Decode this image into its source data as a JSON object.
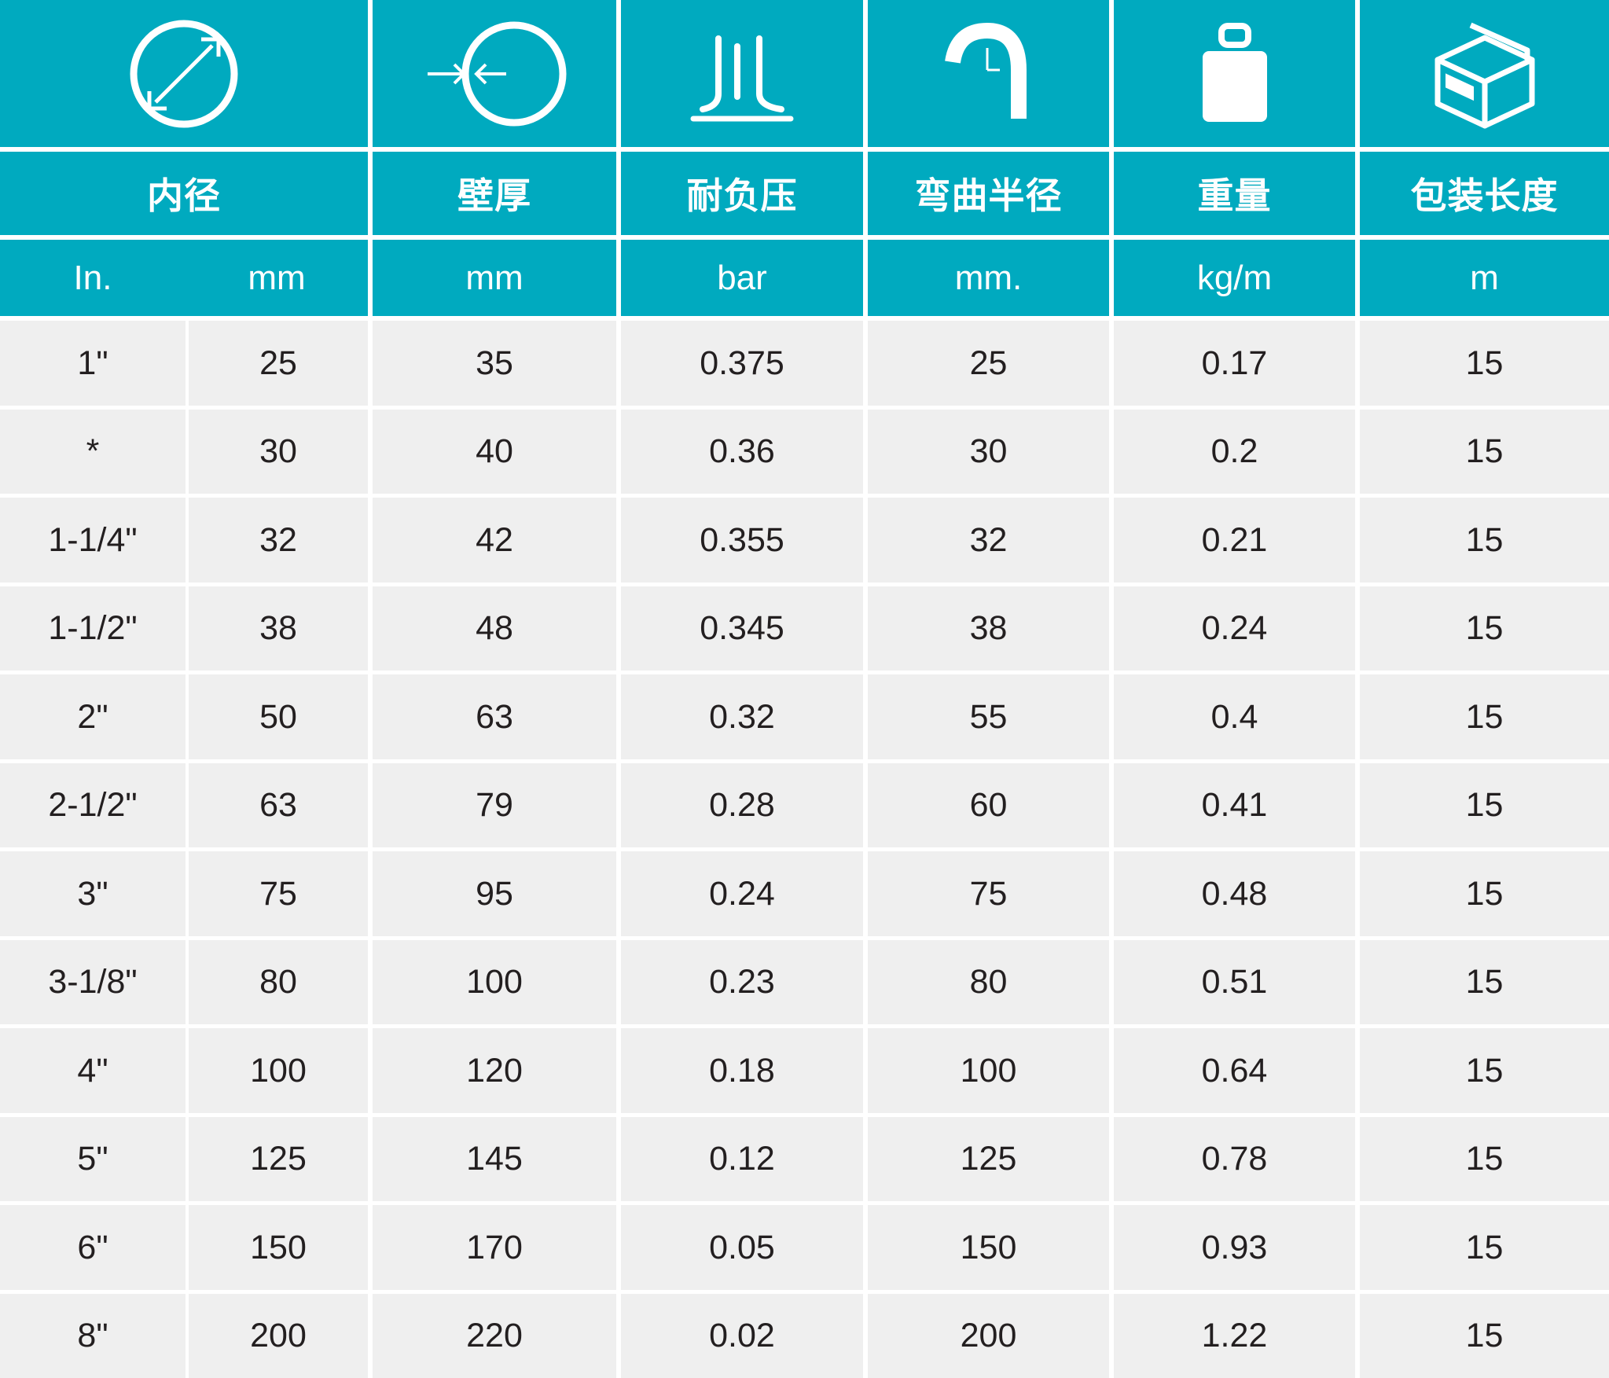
{
  "colors": {
    "header": "#00aabf",
    "row": "#efefef",
    "separator": "#ffffff",
    "text": "#231f20"
  },
  "columns": [
    {
      "icon": "diameter-icon",
      "title": "内径",
      "units": [
        "In.",
        "mm"
      ]
    },
    {
      "icon": "wall-thickness-icon",
      "title": "壁厚",
      "units": [
        "mm"
      ]
    },
    {
      "icon": "pressure-icon",
      "title": "耐负压",
      "units": [
        "bar"
      ]
    },
    {
      "icon": "bend-radius-icon",
      "title": "弯曲半径",
      "units": [
        "mm."
      ]
    },
    {
      "icon": "weight-icon",
      "title": "重量",
      "units": [
        "kg/m"
      ]
    },
    {
      "icon": "package-box-icon",
      "title": "包装长度",
      "units": [
        "m"
      ]
    }
  ],
  "rows": [
    [
      "1\"",
      "25",
      "35",
      "0.375",
      "25",
      "0.17",
      "15"
    ],
    [
      "*",
      "30",
      "40",
      "0.36",
      "30",
      "0.2",
      "15"
    ],
    [
      "1-1/4\"",
      "32",
      "42",
      "0.355",
      "32",
      "0.21",
      "15"
    ],
    [
      "1-1/2\"",
      "38",
      "48",
      "0.345",
      "38",
      "0.24",
      "15"
    ],
    [
      "2\"",
      "50",
      "63",
      "0.32",
      "55",
      "0.4",
      "15"
    ],
    [
      "2-1/2\"",
      "63",
      "79",
      "0.28",
      "60",
      "0.41",
      "15"
    ],
    [
      "3\"",
      "75",
      "95",
      "0.24",
      "75",
      "0.48",
      "15"
    ],
    [
      "3-1/8\"",
      "80",
      "100",
      "0.23",
      "80",
      "0.51",
      "15"
    ],
    [
      "4\"",
      "100",
      "120",
      "0.18",
      "100",
      "0.64",
      "15"
    ],
    [
      "5\"",
      "125",
      "145",
      "0.12",
      "125",
      "0.78",
      "15"
    ],
    [
      "6\"",
      "150",
      "170",
      "0.05",
      "150",
      "0.93",
      "15"
    ],
    [
      "8\"",
      "200",
      "220",
      "0.02",
      "200",
      "1.22",
      "15"
    ]
  ]
}
